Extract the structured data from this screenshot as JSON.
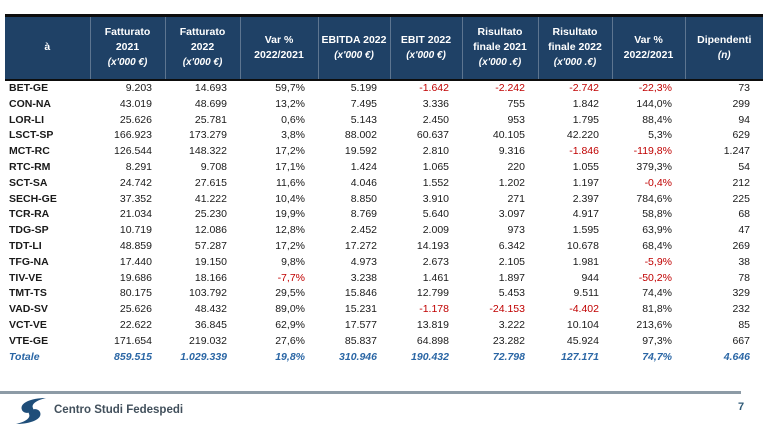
{
  "colors": {
    "header_bg": "#1f4166",
    "header_border": "#0d0d0d",
    "negative_value": "#c00000",
    "total_row": "#2a66a5",
    "footer_line": "#8d9ba6",
    "logo_blue": "#1f4e79"
  },
  "table": {
    "columns": [
      {
        "label": "à",
        "unit": ""
      },
      {
        "label": "Fatturato 2021",
        "unit": "(x'000 €)"
      },
      {
        "label": "Fatturato 2022",
        "unit": "(x'000 €)"
      },
      {
        "label": "Var % 2022/2021",
        "unit": ""
      },
      {
        "label": "EBITDA 2022",
        "unit": "(x'000 €)"
      },
      {
        "label": "EBIT 2022",
        "unit": "(x'000 €)"
      },
      {
        "label": "Risultato finale 2021",
        "unit": "(x'000 .€)"
      },
      {
        "label": "Risultato finale 2022",
        "unit": "(x'000 .€)"
      },
      {
        "label": "Var % 2022/2021",
        "unit": ""
      },
      {
        "label": "Dipendenti",
        "unit": "(n)"
      }
    ],
    "rows": [
      {
        "total": false,
        "cells": [
          "BET-GE",
          "9.203",
          "14.693",
          "59,7%",
          "5.199",
          "-1.642",
          "-2.242",
          "-2.742",
          "-22,3%",
          "73"
        ]
      },
      {
        "total": false,
        "cells": [
          "CON-NA",
          "43.019",
          "48.699",
          "13,2%",
          "7.495",
          "3.336",
          "755",
          "1.842",
          "144,0%",
          "299"
        ]
      },
      {
        "total": false,
        "cells": [
          "LOR-LI",
          "25.626",
          "25.781",
          "0,6%",
          "5.143",
          "2.450",
          "953",
          "1.795",
          "88,4%",
          "94"
        ]
      },
      {
        "total": false,
        "cells": [
          "LSCT-SP",
          "166.923",
          "173.279",
          "3,8%",
          "88.002",
          "60.637",
          "40.105",
          "42.220",
          "5,3%",
          "629"
        ]
      },
      {
        "total": false,
        "cells": [
          "MCT-RC",
          "126.544",
          "148.322",
          "17,2%",
          "19.592",
          "2.810",
          "9.316",
          "-1.846",
          "-119,8%",
          "1.247"
        ]
      },
      {
        "total": false,
        "cells": [
          "RTC-RM",
          "8.291",
          "9.708",
          "17,1%",
          "1.424",
          "1.065",
          "220",
          "1.055",
          "379,3%",
          "54"
        ]
      },
      {
        "total": false,
        "cells": [
          "SCT-SA",
          "24.742",
          "27.615",
          "11,6%",
          "4.046",
          "1.552",
          "1.202",
          "1.197",
          "-0,4%",
          "212"
        ]
      },
      {
        "total": false,
        "cells": [
          "SECH-GE",
          "37.352",
          "41.222",
          "10,4%",
          "8.850",
          "3.910",
          "271",
          "2.397",
          "784,6%",
          "225"
        ]
      },
      {
        "total": false,
        "cells": [
          "TCR-RA",
          "21.034",
          "25.230",
          "19,9%",
          "8.769",
          "5.640",
          "3.097",
          "4.917",
          "58,8%",
          "68"
        ]
      },
      {
        "total": false,
        "cells": [
          "TDG-SP",
          "10.719",
          "12.086",
          "12,8%",
          "2.452",
          "2.009",
          "973",
          "1.595",
          "63,9%",
          "47"
        ]
      },
      {
        "total": false,
        "cells": [
          "TDT-LI",
          "48.859",
          "57.287",
          "17,2%",
          "17.272",
          "14.193",
          "6.342",
          "10.678",
          "68,4%",
          "269"
        ]
      },
      {
        "total": false,
        "cells": [
          "TFG-NA",
          "17.440",
          "19.150",
          "9,8%",
          "4.973",
          "2.673",
          "2.105",
          "1.981",
          "-5,9%",
          "38"
        ]
      },
      {
        "total": false,
        "cells": [
          "TIV-VE",
          "19.686",
          "18.166",
          "-7,7%",
          "3.238",
          "1.461",
          "1.897",
          "944",
          "-50,2%",
          "78"
        ]
      },
      {
        "total": false,
        "cells": [
          "TMT-TS",
          "80.175",
          "103.792",
          "29,5%",
          "15.846",
          "12.799",
          "5.453",
          "9.511",
          "74,4%",
          "329"
        ]
      },
      {
        "total": false,
        "cells": [
          "VAD-SV",
          "25.626",
          "48.432",
          "89,0%",
          "15.231",
          "-1.178",
          "-24.153",
          "-4.402",
          "81,8%",
          "232"
        ]
      },
      {
        "total": false,
        "cells": [
          "VCT-VE",
          "22.622",
          "36.845",
          "62,9%",
          "17.577",
          "13.819",
          "3.222",
          "10.104",
          "213,6%",
          "85"
        ]
      },
      {
        "total": false,
        "cells": [
          "VTE-GE",
          "171.654",
          "219.032",
          "27,6%",
          "85.837",
          "64.898",
          "23.282",
          "45.924",
          "97,3%",
          "667"
        ]
      },
      {
        "total": true,
        "cells": [
          "Totale",
          "859.515",
          "1.029.339",
          "19,8%",
          "310.946",
          "190.432",
          "72.798",
          "127.171",
          "74,7%",
          "4.646"
        ]
      }
    ]
  },
  "footer": {
    "brand": "Centro Studi Fedespedi",
    "page_number": "7"
  }
}
